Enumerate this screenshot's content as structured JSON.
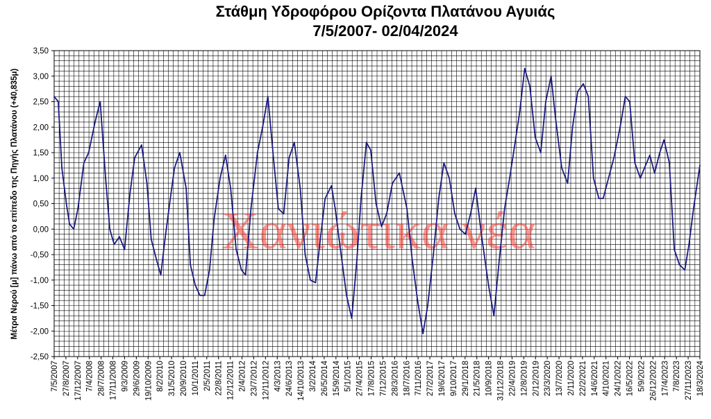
{
  "chart_data": {
    "type": "line",
    "title": "Στάθμη Υδροφόρου Ορίζοντα Πλατάνου Αγυιάς",
    "subtitle": "7/5/2007- 02/04/2024",
    "xlabel": "",
    "ylabel": "Μέτρα Νερού [μ] πάνω από το επίπεδο της Πηγής Πλατάνου (+40,835μ)",
    "ylim": [
      -2.5,
      3.5
    ],
    "yticks": [
      "-2,50",
      "-2,00",
      "-1,50",
      "-1,00",
      "-0,50",
      "0,00",
      "0,50",
      "1,00",
      "1,50",
      "2,00",
      "2,50",
      "3,00",
      "3,50"
    ],
    "xlim": [
      "2007-05-07",
      "2024-04-02"
    ],
    "xtick_labels": [
      "7/5/2007",
      "27/8/2007",
      "17/12/2007",
      "7/4/2008",
      "28/7/2008",
      "17/11/2008",
      "9/3/2009",
      "29/6/2009",
      "19/10/2009",
      "8/2/2010",
      "31/5/2010",
      "20/9/2010",
      "10/1/2011",
      "2/5/2011",
      "22/8/2011",
      "12/12/2011",
      "2/4/2012",
      "23/7/2012",
      "12/11/2012",
      "4/3/2013",
      "24/6/2013",
      "14/10/2013",
      "3/2/2014",
      "26/5/2014",
      "15/9/2014",
      "5/1/2015",
      "27/4/2015",
      "17/8/2015",
      "7/12/2015",
      "28/3/2016",
      "18/7/2016",
      "7/11/2016",
      "27/2/2017",
      "19/6/2017",
      "9/10/2017",
      "29/1/2018",
      "21/5/2018",
      "10/9/2018",
      "31/12/2018",
      "22/4/2019",
      "12/8/2019",
      "2/12/2019",
      "23/3/2020",
      "13/7/2020",
      "2/11/2020",
      "22/2/2021",
      "14/6/2021",
      "4/10/2021",
      "24/1/2022",
      "16/5/2022",
      "5/9/2022",
      "26/12/2022",
      "17/4/2023",
      "7/8/2023",
      "27/11/2023",
      "18/3/2024"
    ],
    "grid": true,
    "legend": "none",
    "series": [
      {
        "color": "#1a1a80",
        "x": [
          "2007-05-07",
          "2007-06-15",
          "2007-07-20",
          "2007-09-01",
          "2007-10-01",
          "2007-11-10",
          "2007-12-20",
          "2008-02-15",
          "2008-04-01",
          "2008-06-01",
          "2008-07-20",
          "2008-09-10",
          "2008-10-20",
          "2008-12-01",
          "2009-01-20",
          "2009-03-10",
          "2009-05-01",
          "2009-06-15",
          "2009-08-20",
          "2009-10-10",
          "2009-11-20",
          "2010-01-10",
          "2010-02-20",
          "2010-04-01",
          "2010-05-15",
          "2010-07-01",
          "2010-08-20",
          "2010-10-20",
          "2010-11-30",
          "2011-01-15",
          "2011-03-01",
          "2011-04-15",
          "2011-06-01",
          "2011-07-15",
          "2011-09-10",
          "2011-11-01",
          "2011-12-20",
          "2012-02-10",
          "2012-04-01",
          "2012-05-10",
          "2012-07-01",
          "2012-09-01",
          "2012-10-20",
          "2012-12-10",
          "2013-02-01",
          "2013-03-20",
          "2013-05-10",
          "2013-07-01",
          "2013-08-20",
          "2013-10-15",
          "2013-12-01",
          "2014-01-20",
          "2014-03-10",
          "2014-04-20",
          "2014-06-10",
          "2014-08-10",
          "2014-09-15",
          "2014-11-10",
          "2015-01-01",
          "2015-02-20",
          "2015-04-10",
          "2015-05-20",
          "2015-07-10",
          "2015-08-20",
          "2015-10-10",
          "2015-12-01",
          "2016-01-20",
          "2016-03-15",
          "2016-05-20",
          "2016-08-01",
          "2016-09-20",
          "2016-11-10",
          "2017-01-01",
          "2017-02-15",
          "2017-04-10",
          "2017-06-01",
          "2017-07-20",
          "2017-09-10",
          "2017-11-01",
          "2017-12-20",
          "2018-02-10",
          "2018-04-01",
          "2018-05-20",
          "2018-07-20",
          "2018-09-20",
          "2018-11-10",
          "2019-01-01",
          "2019-02-20",
          "2019-04-10",
          "2019-06-01",
          "2019-07-15",
          "2019-09-01",
          "2019-10-20",
          "2019-12-10",
          "2020-02-01",
          "2020-03-20",
          "2020-05-10",
          "2020-06-20",
          "2020-08-20",
          "2020-10-15",
          "2020-12-01",
          "2021-01-20",
          "2021-03-15",
          "2021-05-01",
          "2021-06-20",
          "2021-08-10",
          "2021-09-20",
          "2021-11-10",
          "2022-01-01",
          "2022-03-01",
          "2022-04-20",
          "2022-06-01",
          "2022-07-20",
          "2022-09-10",
          "2022-10-20",
          "2022-12-10",
          "2023-01-25",
          "2023-03-15",
          "2023-04-25",
          "2023-06-15",
          "2023-08-01",
          "2023-09-20",
          "2023-11-10",
          "2023-12-20",
          "2024-02-01",
          "2024-04-02"
        ],
        "y": [
          2.6,
          2.5,
          1.2,
          0.5,
          0.1,
          0.0,
          0.4,
          1.3,
          1.5,
          2.1,
          2.5,
          1.0,
          0.0,
          -0.3,
          -0.15,
          -0.4,
          0.7,
          1.4,
          1.65,
          0.9,
          -0.2,
          -0.6,
          -0.9,
          -0.2,
          0.5,
          1.2,
          1.5,
          0.8,
          -0.7,
          -1.1,
          -1.3,
          -1.3,
          -0.8,
          0.2,
          1.0,
          1.45,
          0.8,
          -0.4,
          -0.8,
          -0.9,
          0.4,
          1.5,
          2.0,
          2.6,
          1.4,
          0.4,
          0.3,
          1.4,
          1.7,
          0.8,
          -0.5,
          -1.0,
          -1.05,
          -0.3,
          0.6,
          0.85,
          0.4,
          -0.5,
          -1.3,
          -1.75,
          -0.6,
          0.6,
          1.7,
          1.55,
          0.5,
          0.05,
          0.3,
          0.9,
          1.1,
          0.4,
          -0.6,
          -1.4,
          -2.05,
          -1.5,
          -0.5,
          0.6,
          1.3,
          1.0,
          0.3,
          0.0,
          -0.1,
          0.3,
          0.8,
          -0.2,
          -1.1,
          -1.7,
          -0.6,
          0.4,
          1.0,
          1.7,
          2.3,
          3.15,
          2.8,
          1.8,
          1.5,
          2.5,
          3.0,
          2.2,
          1.2,
          0.9,
          2.0,
          2.7,
          2.85,
          2.6,
          1.0,
          0.6,
          0.6,
          1.0,
          1.4,
          2.0,
          2.6,
          2.5,
          1.3,
          1.0,
          1.2,
          1.45,
          1.1,
          1.5,
          1.75,
          1.3,
          -0.4,
          -0.7,
          -0.8,
          -0.3,
          0.4,
          1.25
        ]
      }
    ],
    "watermark": "Χανιώτικα νέα"
  }
}
